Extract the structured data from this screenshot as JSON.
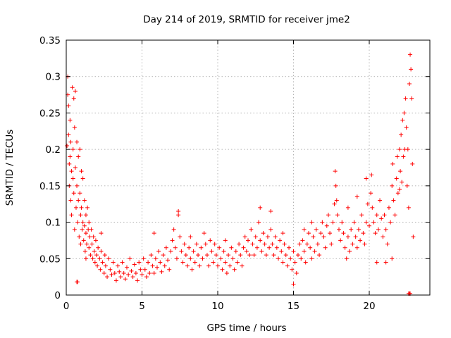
{
  "chart_data": {
    "type": "scatter",
    "title": "Day 214 of 2019, SRMTID for receiver jme2",
    "xlabel": "GPS time / hours",
    "ylabel": "SRMTID / TECUs",
    "xlim": [
      0,
      24
    ],
    "ylim": [
      0,
      0.35
    ],
    "xticks": [
      0,
      5,
      10,
      15,
      20
    ],
    "xtick_labels": [
      "0",
      "5",
      "10",
      "15",
      "20"
    ],
    "yticks": [
      0,
      0.05,
      0.1,
      0.15,
      0.2,
      0.25,
      0.3,
      0.35
    ],
    "ytick_labels": [
      "0",
      "0.05",
      "0.1",
      "0.15",
      "0.2",
      "0.25",
      "0.3",
      "0.35"
    ],
    "grid": true,
    "marker": "plus",
    "color": "#ff0000",
    "series": [
      {
        "name": "SRMTID",
        "points": [
          [
            0.05,
            0.205
          ],
          [
            0.1,
            0.3
          ],
          [
            0.1,
            0.275
          ],
          [
            0.15,
            0.26
          ],
          [
            0.15,
            0.22
          ],
          [
            0.2,
            0.18
          ],
          [
            0.2,
            0.15
          ],
          [
            0.25,
            0.24
          ],
          [
            0.25,
            0.19
          ],
          [
            0.3,
            0.21
          ],
          [
            0.3,
            0.13
          ],
          [
            0.35,
            0.17
          ],
          [
            0.35,
            0.11
          ],
          [
            0.4,
            0.285
          ],
          [
            0.45,
            0.2
          ],
          [
            0.45,
            0.16
          ],
          [
            0.5,
            0.27
          ],
          [
            0.5,
            0.14
          ],
          [
            0.55,
            0.23
          ],
          [
            0.55,
            0.09
          ],
          [
            0.6,
            0.28
          ],
          [
            0.6,
            0.175
          ],
          [
            0.65,
            0.12
          ],
          [
            0.7,
            0.21
          ],
          [
            0.7,
            0.15
          ],
          [
            0.75,
            0.1
          ],
          [
            0.8,
            0.19
          ],
          [
            0.8,
            0.13
          ],
          [
            0.85,
            0.08
          ],
          [
            0.9,
            0.2
          ],
          [
            0.9,
            0.14
          ],
          [
            0.95,
            0.11
          ],
          [
            0.95,
            0.07
          ],
          [
            1.0,
            0.17
          ],
          [
            1.0,
            0.12
          ],
          [
            1.05,
            0.09
          ],
          [
            1.1,
            0.16
          ],
          [
            1.1,
            0.1
          ],
          [
            1.15,
            0.075
          ],
          [
            1.2,
            0.13
          ],
          [
            1.2,
            0.095
          ],
          [
            1.25,
            0.06
          ],
          [
            1.3,
            0.11
          ],
          [
            1.3,
            0.085
          ],
          [
            1.35,
            0.07
          ],
          [
            1.4,
            0.12
          ],
          [
            1.45,
            0.09
          ],
          [
            1.5,
            0.065
          ],
          [
            1.5,
            0.1
          ],
          [
            1.55,
            0.08
          ],
          [
            1.6,
            0.055
          ],
          [
            1.65,
            0.09
          ],
          [
            1.7,
            0.07
          ],
          [
            1.75,
            0.05
          ],
          [
            1.8,
            0.08
          ],
          [
            1.85,
            0.06
          ],
          [
            1.9,
            0.045
          ],
          [
            1.95,
            0.075
          ],
          [
            2.0,
            0.055
          ],
          [
            2.05,
            0.04
          ],
          [
            2.1,
            0.065
          ],
          [
            2.2,
            0.05
          ],
          [
            2.25,
            0.035
          ],
          [
            2.3,
            0.06
          ],
          [
            2.4,
            0.045
          ],
          [
            2.5,
            0.03
          ],
          [
            2.55,
            0.055
          ],
          [
            2.6,
            0.04
          ],
          [
            2.7,
            0.025
          ],
          [
            2.8,
            0.05
          ],
          [
            2.9,
            0.035
          ],
          [
            3.0,
            0.028
          ],
          [
            3.1,
            0.045
          ],
          [
            3.2,
            0.03
          ],
          [
            3.3,
            0.02
          ],
          [
            3.4,
            0.04
          ],
          [
            3.5,
            0.032
          ],
          [
            3.6,
            0.025
          ],
          [
            3.7,
            0.045
          ],
          [
            3.8,
            0.03
          ],
          [
            3.9,
            0.022
          ],
          [
            4.0,
            0.038
          ],
          [
            4.1,
            0.028
          ],
          [
            4.2,
            0.05
          ],
          [
            4.3,
            0.033
          ],
          [
            4.4,
            0.025
          ],
          [
            4.5,
            0.042
          ],
          [
            4.6,
            0.03
          ],
          [
            4.7,
            0.02
          ],
          [
            4.8,
            0.045
          ],
          [
            4.9,
            0.035
          ],
          [
            5.0,
            0.028
          ],
          [
            5.1,
            0.05
          ],
          [
            5.2,
            0.035
          ],
          [
            5.3,
            0.025
          ],
          [
            5.4,
            0.045
          ],
          [
            5.5,
            0.03
          ],
          [
            5.6,
            0.055
          ],
          [
            5.7,
            0.04
          ],
          [
            5.8,
            0.03
          ],
          [
            5.9,
            0.05
          ],
          [
            6.0,
            0.038
          ],
          [
            6.1,
            0.06
          ],
          [
            6.2,
            0.045
          ],
          [
            6.3,
            0.032
          ],
          [
            6.4,
            0.055
          ],
          [
            6.5,
            0.04
          ],
          [
            6.6,
            0.065
          ],
          [
            6.7,
            0.048
          ],
          [
            6.8,
            0.035
          ],
          [
            6.9,
            0.06
          ],
          [
            7.0,
            0.075
          ],
          [
            7.1,
            0.09
          ],
          [
            7.2,
            0.065
          ],
          [
            7.3,
            0.05
          ],
          [
            7.4,
            0.11
          ],
          [
            7.5,
            0.08
          ],
          [
            7.6,
            0.06
          ],
          [
            7.7,
            0.045
          ],
          [
            7.8,
            0.07
          ],
          [
            7.9,
            0.055
          ],
          [
            8.0,
            0.04
          ],
          [
            8.1,
            0.065
          ],
          [
            8.2,
            0.05
          ],
          [
            8.3,
            0.035
          ],
          [
            8.4,
            0.06
          ],
          [
            8.5,
            0.045
          ],
          [
            8.6,
            0.07
          ],
          [
            8.7,
            0.055
          ],
          [
            8.8,
            0.04
          ],
          [
            8.9,
            0.065
          ],
          [
            9.0,
            0.05
          ],
          [
            9.1,
            0.085
          ],
          [
            9.2,
            0.07
          ],
          [
            9.3,
            0.055
          ],
          [
            9.4,
            0.04
          ],
          [
            9.5,
            0.075
          ],
          [
            9.6,
            0.06
          ],
          [
            9.7,
            0.045
          ],
          [
            9.8,
            0.07
          ],
          [
            9.9,
            0.055
          ],
          [
            10.0,
            0.04
          ],
          [
            10.1,
            0.065
          ],
          [
            10.2,
            0.05
          ],
          [
            10.3,
            0.035
          ],
          [
            10.4,
            0.06
          ],
          [
            10.5,
            0.045
          ],
          [
            10.6,
            0.03
          ],
          [
            10.7,
            0.055
          ],
          [
            10.8,
            0.04
          ],
          [
            10.9,
            0.065
          ],
          [
            11.0,
            0.05
          ],
          [
            11.1,
            0.035
          ],
          [
            11.2,
            0.06
          ],
          [
            11.3,
            0.045
          ],
          [
            11.4,
            0.07
          ],
          [
            11.5,
            0.055
          ],
          [
            11.6,
            0.04
          ],
          [
            11.7,
            0.065
          ],
          [
            11.8,
            0.08
          ],
          [
            11.9,
            0.06
          ],
          [
            12.0,
            0.075
          ],
          [
            12.1,
            0.055
          ],
          [
            12.2,
            0.09
          ],
          [
            12.3,
            0.07
          ],
          [
            12.4,
            0.055
          ],
          [
            12.5,
            0.08
          ],
          [
            12.6,
            0.065
          ],
          [
            12.7,
            0.1
          ],
          [
            12.8,
            0.075
          ],
          [
            12.9,
            0.06
          ],
          [
            13.0,
            0.085
          ],
          [
            13.1,
            0.07
          ],
          [
            13.2,
            0.055
          ],
          [
            13.3,
            0.08
          ],
          [
            13.4,
            0.065
          ],
          [
            13.5,
            0.09
          ],
          [
            13.6,
            0.07
          ],
          [
            13.7,
            0.055
          ],
          [
            13.8,
            0.08
          ],
          [
            13.9,
            0.065
          ],
          [
            14.0,
            0.05
          ],
          [
            14.1,
            0.075
          ],
          [
            14.2,
            0.06
          ],
          [
            14.3,
            0.045
          ],
          [
            14.4,
            0.07
          ],
          [
            14.5,
            0.055
          ],
          [
            14.6,
            0.04
          ],
          [
            14.7,
            0.065
          ],
          [
            14.8,
            0.05
          ],
          [
            14.9,
            0.035
          ],
          [
            15.0,
            0.06
          ],
          [
            15.1,
            0.045
          ],
          [
            15.2,
            0.03
          ],
          [
            15.0,
            0.015
          ],
          [
            15.3,
            0.055
          ],
          [
            15.4,
            0.07
          ],
          [
            15.5,
            0.05
          ],
          [
            15.6,
            0.075
          ],
          [
            15.7,
            0.06
          ],
          [
            15.8,
            0.045
          ],
          [
            15.9,
            0.07
          ],
          [
            16.0,
            0.085
          ],
          [
            16.1,
            0.065
          ],
          [
            16.2,
            0.05
          ],
          [
            16.3,
            0.08
          ],
          [
            16.4,
            0.06
          ],
          [
            16.5,
            0.09
          ],
          [
            16.6,
            0.07
          ],
          [
            16.7,
            0.055
          ],
          [
            16.8,
            0.085
          ],
          [
            16.9,
            0.1
          ],
          [
            17.0,
            0.08
          ],
          [
            17.1,
            0.065
          ],
          [
            17.2,
            0.095
          ],
          [
            17.3,
            0.11
          ],
          [
            17.4,
            0.085
          ],
          [
            17.5,
            0.07
          ],
          [
            17.6,
            0.1
          ],
          [
            17.7,
            0.125
          ],
          [
            17.75,
            0.17
          ],
          [
            17.8,
            0.15
          ],
          [
            17.85,
            0.13
          ],
          [
            17.9,
            0.11
          ],
          [
            18.0,
            0.09
          ],
          [
            18.1,
            0.075
          ],
          [
            18.2,
            0.1
          ],
          [
            18.3,
            0.085
          ],
          [
            18.4,
            0.065
          ],
          [
            18.5,
            0.05
          ],
          [
            18.6,
            0.08
          ],
          [
            18.7,
            0.06
          ],
          [
            18.8,
            0.09
          ],
          [
            18.9,
            0.07
          ],
          [
            19.0,
            0.1
          ],
          [
            19.1,
            0.08
          ],
          [
            19.2,
            0.065
          ],
          [
            19.3,
            0.09
          ],
          [
            19.4,
            0.075
          ],
          [
            19.5,
            0.11
          ],
          [
            19.6,
            0.085
          ],
          [
            19.7,
            0.07
          ],
          [
            19.8,
            0.1
          ],
          [
            19.9,
            0.125
          ],
          [
            20.0,
            0.095
          ],
          [
            20.1,
            0.14
          ],
          [
            20.15,
            0.165
          ],
          [
            20.2,
            0.12
          ],
          [
            20.3,
            0.1
          ],
          [
            20.4,
            0.085
          ],
          [
            20.5,
            0.11
          ],
          [
            20.6,
            0.09
          ],
          [
            20.7,
            0.13
          ],
          [
            20.8,
            0.105
          ],
          [
            20.9,
            0.08
          ],
          [
            21.0,
            0.11
          ],
          [
            21.1,
            0.09
          ],
          [
            21.2,
            0.07
          ],
          [
            21.3,
            0.12
          ],
          [
            21.4,
            0.1
          ],
          [
            21.5,
            0.15
          ],
          [
            21.55,
            0.18
          ],
          [
            21.6,
            0.13
          ],
          [
            21.7,
            0.11
          ],
          [
            21.8,
            0.16
          ],
          [
            21.85,
            0.19
          ],
          [
            21.9,
            0.14
          ],
          [
            22.0,
            0.2
          ],
          [
            22.05,
            0.17
          ],
          [
            22.1,
            0.22
          ],
          [
            22.15,
            0.155
          ],
          [
            22.2,
            0.24
          ],
          [
            22.25,
            0.19
          ],
          [
            22.3,
            0.25
          ],
          [
            22.35,
            0.2
          ],
          [
            22.4,
            0.27
          ],
          [
            22.45,
            0.23
          ],
          [
            22.5,
            0.15
          ],
          [
            22.55,
            0.2
          ],
          [
            22.6,
            0.12
          ],
          [
            22.65,
            0.29
          ],
          [
            22.7,
            0.33
          ],
          [
            22.75,
            0.31
          ],
          [
            22.8,
            0.27
          ],
          [
            22.85,
            0.18
          ],
          [
            22.9,
            0.08
          ],
          [
            22.6,
            0.002
          ],
          [
            22.65,
            0.002
          ],
          [
            22.7,
            0.002
          ],
          [
            0.7,
            0.018
          ],
          [
            0.75,
            0.018
          ],
          [
            1.3,
            0.05
          ],
          [
            2.3,
            0.085
          ],
          [
            5.8,
            0.085
          ],
          [
            7.4,
            0.115
          ],
          [
            8.2,
            0.08
          ],
          [
            10.5,
            0.075
          ],
          [
            12.8,
            0.12
          ],
          [
            13.5,
            0.115
          ],
          [
            14.3,
            0.085
          ],
          [
            15.7,
            0.09
          ],
          [
            16.2,
            0.1
          ],
          [
            18.6,
            0.12
          ],
          [
            19.2,
            0.135
          ],
          [
            19.8,
            0.16
          ],
          [
            20.5,
            0.045
          ],
          [
            21.1,
            0.045
          ],
          [
            21.5,
            0.05
          ],
          [
            22.0,
            0.145
          ]
        ]
      }
    ]
  }
}
